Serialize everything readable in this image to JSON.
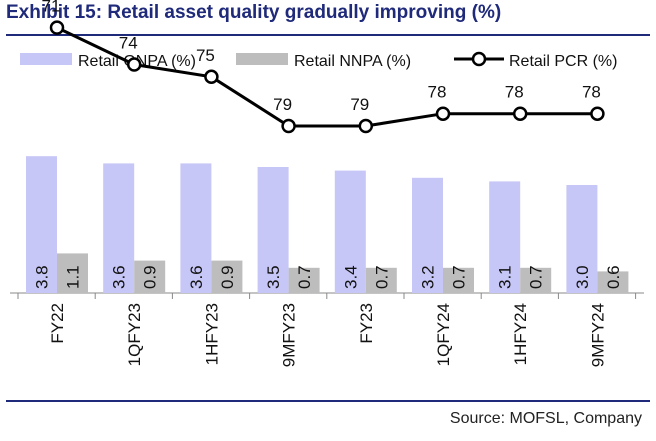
{
  "title": "Exhibit 15: Retail asset quality gradually improving (%)",
  "source": "Source: MOFSL, Company",
  "colors": {
    "gnpa": "#c6c6f7",
    "nnpa": "#bdbdbd",
    "pcr": "#000000",
    "title": "#1f2a7a"
  },
  "chart_data": {
    "type": "bar",
    "categories": [
      "FY22",
      "1QFY23",
      "1HFY23",
      "9MFY23",
      "FY23",
      "1QFY24",
      "1HFY24",
      "9MFY24"
    ],
    "series": [
      {
        "name": "Retail GNPA (%)",
        "type": "bar",
        "values": [
          3.8,
          3.6,
          3.6,
          3.5,
          3.4,
          3.2,
          3.1,
          3.0
        ]
      },
      {
        "name": "Retail NNPA (%)",
        "type": "bar",
        "values": [
          1.1,
          0.9,
          0.9,
          0.7,
          0.7,
          0.7,
          0.7,
          0.6
        ]
      },
      {
        "name": "Retail PCR (%)",
        "type": "line",
        "values": [
          71,
          74,
          75,
          79,
          79,
          78,
          78,
          78
        ]
      }
    ],
    "legend_position": "top",
    "grid": false
  }
}
